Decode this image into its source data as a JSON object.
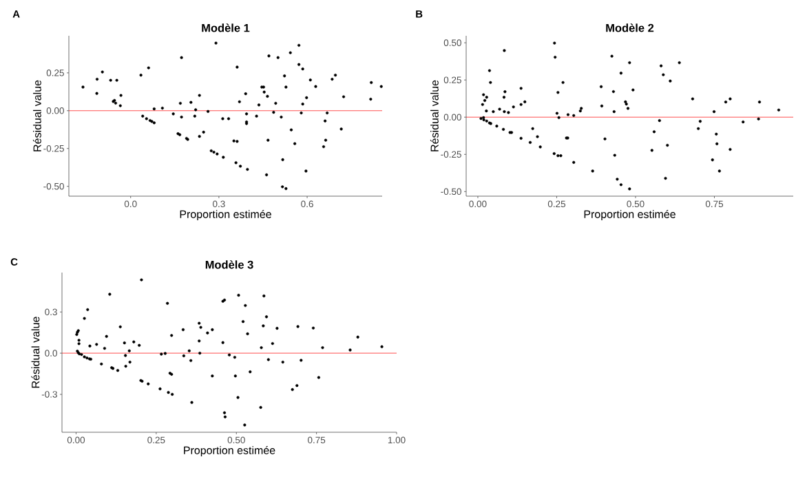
{
  "chart_data": [
    {
      "type": "scatter",
      "title": "Modèle 1",
      "xlabel": "Proportion estimée",
      "ylabel": "Résidual value",
      "annotations": [
        "A"
      ],
      "color": "#000000",
      "marker": "circle",
      "grid": false,
      "xlim": [
        -0.21,
        0.855
      ],
      "ylim": [
        -0.565,
        0.495
      ],
      "xticks": [
        {
          "value": 0,
          "label": "0.0"
        },
        0.3,
        0.6
      ],
      "yticks": [
        {
          "value": -0.5,
          "label": "-0.50"
        },
        -0.25,
        {
          "value": 0,
          "label": "0.00"
        },
        0.25
      ],
      "ref_lines": [
        {
          "axis": "y",
          "value": 0,
          "color": "#ff0000",
          "line_style": "solid"
        }
      ],
      "x": [
        -0.162,
        -0.115,
        -0.114,
        -0.096,
        -0.068,
        -0.047,
        -0.059,
        -0.055,
        -0.051,
        -0.035,
        -0.033,
        0.035,
        0.061,
        0.041,
        0.054,
        0.066,
        0.072,
        0.08,
        0.08,
        0.108,
        0.145,
        0.169,
        0.173,
        0.173,
        0.161,
        0.167,
        0.19,
        0.194,
        0.205,
        0.218,
        0.221,
        0.234,
        0.234,
        0.248,
        0.263,
        0.29,
        0.274,
        0.283,
        0.294,
        0.315,
        0.313,
        0.333,
        0.362,
        0.37,
        0.351,
        0.362,
        0.358,
        0.373,
        0.397,
        0.391,
        0.394,
        0.394,
        0.394,
        0.428,
        0.436,
        0.446,
        0.452,
        0.454,
        0.465,
        0.47,
        0.467,
        0.462,
        0.486,
        0.493,
        0.501,
        0.512,
        0.517,
        0.516,
        0.528,
        0.523,
        0.528,
        0.543,
        0.546,
        0.558,
        0.572,
        0.572,
        0.585,
        0.58,
        0.585,
        0.598,
        0.596,
        0.611,
        0.629,
        0.661,
        0.668,
        0.663,
        0.656,
        0.685,
        0.696,
        0.716,
        0.724,
        0.818,
        0.816,
        0.852
      ],
      "values": [
        0.156,
        0.114,
        0.208,
        0.256,
        0.201,
        0.201,
        0.061,
        0.068,
        0.05,
        0.033,
        0.101,
        0.235,
        0.283,
        -0.036,
        -0.053,
        -0.065,
        -0.071,
        -0.08,
        0.012,
        0.017,
        -0.021,
        0.049,
        0.351,
        -0.042,
        -0.152,
        -0.159,
        -0.183,
        -0.19,
        0.055,
        -0.036,
        0.006,
        0.101,
        -0.17,
        -0.142,
        -0.005,
        0.447,
        -0.265,
        -0.274,
        -0.286,
        -0.308,
        -0.053,
        -0.053,
        0.288,
        0.059,
        -0.2,
        -0.203,
        -0.344,
        -0.367,
        -0.388,
        0.112,
        -0.021,
        -0.074,
        -0.085,
        -0.036,
        0.038,
        0.156,
        0.156,
        0.123,
        0.095,
        0.362,
        -0.195,
        -0.424,
        -0.011,
        0.049,
        0.351,
        -0.042,
        -0.324,
        -0.503,
        -0.515,
        0.23,
        0.156,
        0.383,
        -0.127,
        -0.218,
        0.432,
        0.305,
        0.276,
        -0.015,
        0.044,
        0.086,
        -0.399,
        0.203,
        0.16,
        -0.068,
        -0.015,
        -0.195,
        -0.238,
        0.208,
        0.235,
        -0.121,
        0.092,
        0.186,
        0.076,
        0.16
      ]
    },
    {
      "type": "scatter",
      "title": "Modèle 2",
      "xlabel": "Proportion estimée",
      "ylabel": "Résidual value",
      "annotations": [
        "B"
      ],
      "color": "#000000",
      "marker": "circle",
      "grid": false,
      "xlim": [
        -0.037,
        1.0
      ],
      "ylim": [
        -0.531,
        0.547
      ],
      "xticks": [
        {
          "value": 0,
          "label": "0.00"
        },
        0.25,
        {
          "value": 0.5,
          "label": "0.50"
        },
        0.75
      ],
      "yticks": [
        {
          "value": -0.5,
          "label": "-0.50"
        },
        -0.25,
        {
          "value": 0,
          "label": "0.00"
        },
        0.25,
        {
          "value": 0.5,
          "label": "0.50"
        }
      ],
      "ref_lines": [
        {
          "axis": "y",
          "value": 0,
          "color": "#ff0000",
          "line_style": "solid"
        }
      ],
      "x": [
        0.243,
        0.245,
        0.084,
        0.037,
        0.04,
        0.018,
        0.022,
        0.028,
        0.015,
        0.027,
        0.01,
        0.018,
        0.019,
        0.028,
        0.037,
        0.041,
        0.049,
        0.06,
        0.069,
        0.081,
        0.083,
        0.086,
        0.084,
        0.097,
        0.102,
        0.107,
        0.113,
        0.137,
        0.137,
        0.149,
        0.137,
        0.166,
        0.174,
        0.189,
        0.198,
        0.242,
        0.254,
        0.251,
        0.257,
        0.254,
        0.263,
        0.27,
        0.281,
        0.285,
        0.286,
        0.304,
        0.304,
        0.325,
        0.328,
        0.364,
        0.391,
        0.393,
        0.403,
        0.425,
        0.454,
        0.43,
        0.432,
        0.434,
        0.442,
        0.454,
        0.481,
        0.481,
        0.468,
        0.471,
        0.476,
        0.492,
        0.576,
        0.559,
        0.552,
        0.581,
        0.588,
        0.61,
        0.639,
        0.601,
        0.595,
        0.681,
        0.705,
        0.699,
        0.749,
        0.756,
        0.758,
        0.744,
        0.766,
        0.786,
        0.8,
        0.8,
        0.841,
        0.89,
        0.893,
        0.954
      ],
      "values": [
        0.498,
        0.403,
        0.448,
        0.313,
        0.233,
        0.151,
        0.112,
        0.134,
        0.085,
        0.042,
        -0.009,
        -0.003,
        -0.018,
        -0.026,
        -0.039,
        -0.043,
        0.037,
        -0.06,
        0.054,
        -0.082,
        0.134,
        0.171,
        0.037,
        0.031,
        -0.103,
        -0.103,
        0.069,
        0.194,
        0.085,
        0.103,
        -0.142,
        -0.17,
        -0.077,
        -0.131,
        -0.2,
        -0.245,
        0.166,
        0.026,
        -0.003,
        -0.259,
        -0.259,
        0.233,
        -0.14,
        -0.14,
        0.017,
        0.011,
        -0.304,
        0.042,
        0.059,
        -0.362,
        0.205,
        0.075,
        -0.146,
        0.41,
        0.296,
        0.172,
        0.037,
        -0.256,
        -0.417,
        -0.454,
        -0.482,
        0.366,
        0.103,
        0.088,
        0.059,
        0.183,
        -0.023,
        -0.098,
        -0.223,
        0.345,
        0.285,
        0.243,
        0.366,
        -0.189,
        -0.411,
        0.123,
        -0.028,
        -0.077,
        0.037,
        -0.114,
        -0.179,
        -0.287,
        -0.362,
        0.102,
        0.123,
        -0.217,
        -0.032,
        -0.012,
        0.102,
        0.048
      ]
    },
    {
      "type": "scatter",
      "title": "Modèle 3",
      "xlabel": "Proportion estimée",
      "ylabel": "Résidual value",
      "annotations": [
        "C"
      ],
      "color": "#000000",
      "marker": "circle",
      "grid": false,
      "xlim": [
        -0.044,
        1.0
      ],
      "ylim": [
        -0.576,
        0.587
      ],
      "xticks": [
        {
          "value": 0,
          "label": "0.00"
        },
        0.25,
        {
          "value": 0.5,
          "label": "0.50"
        },
        0.75,
        {
          "value": 1,
          "label": "1.00"
        }
      ],
      "yticks": [
        -0.3,
        {
          "value": 0,
          "label": "0.0"
        },
        0.3
      ],
      "ref_lines": [
        {
          "axis": "y",
          "value": 0,
          "color": "#ff0000",
          "line_style": "solid"
        }
      ],
      "x": [
        0.204,
        0.105,
        0.285,
        0.036,
        0.026,
        0.002,
        0.004,
        0.007,
        0.009,
        0.009,
        0.004,
        0.007,
        0.01,
        0.017,
        0.026,
        0.034,
        0.042,
        0.046,
        0.043,
        0.064,
        0.089,
        0.095,
        0.079,
        0.111,
        0.115,
        0.13,
        0.138,
        0.151,
        0.154,
        0.155,
        0.166,
        0.168,
        0.18,
        0.197,
        0.202,
        0.206,
        0.225,
        0.262,
        0.266,
        0.278,
        0.288,
        0.3,
        0.293,
        0.298,
        0.298,
        0.334,
        0.336,
        0.353,
        0.358,
        0.361,
        0.384,
        0.389,
        0.384,
        0.386,
        0.41,
        0.425,
        0.425,
        0.458,
        0.458,
        0.463,
        0.463,
        0.465,
        0.478,
        0.495,
        0.497,
        0.505,
        0.507,
        0.521,
        0.528,
        0.526,
        0.535,
        0.543,
        0.576,
        0.578,
        0.584,
        0.586,
        0.594,
        0.6,
        0.613,
        0.627,
        0.645,
        0.675,
        0.689,
        0.692,
        0.702,
        0.74,
        0.757,
        0.769,
        0.855,
        0.879,
        0.954
      ],
      "values": [
        0.534,
        0.429,
        0.363,
        0.317,
        0.253,
        0.136,
        0.152,
        0.164,
        0.094,
        0.069,
        0.015,
        0.003,
        -0.005,
        -0.01,
        -0.027,
        -0.035,
        -0.042,
        -0.044,
        0.052,
        0.064,
        0.035,
        0.122,
        -0.079,
        -0.106,
        -0.111,
        -0.126,
        0.192,
        0.075,
        -0.017,
        -0.095,
        0.017,
        -0.065,
        0.082,
        0.057,
        -0.199,
        -0.204,
        -0.224,
        -0.26,
        -0.007,
        -0.002,
        -0.286,
        -0.3,
        -0.146,
        -0.154,
        0.129,
        0.171,
        -0.019,
        0.017,
        -0.054,
        -0.359,
        0.218,
        0.188,
        0.089,
        0.0,
        0.147,
        0.171,
        -0.166,
        0.077,
        0.378,
        0.387,
        -0.434,
        -0.464,
        -0.013,
        -0.03,
        -0.166,
        -0.323,
        0.422,
        0.23,
        0.347,
        -0.523,
        0.141,
        -0.136,
        -0.395,
        0.04,
        0.199,
        0.417,
        0.265,
        -0.047,
        0.07,
        0.181,
        -0.065,
        -0.265,
        -0.236,
        0.194,
        -0.052,
        0.183,
        -0.177,
        0.04,
        0.023,
        0.117,
        0.047
      ]
    }
  ]
}
